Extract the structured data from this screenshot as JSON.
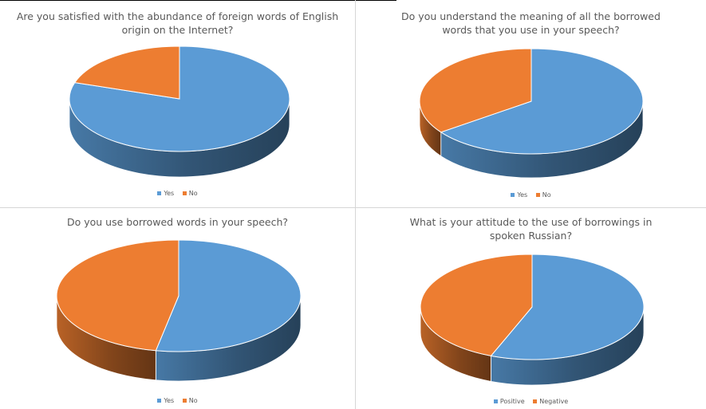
{
  "colors": {
    "series_a": "#5b9bd5",
    "series_b": "#ed7d31"
  },
  "chart_data": [
    {
      "type": "pie",
      "title": "Are you satisfied with the abundance of foreign words of English origin on the Internet?",
      "labels": [
        "Yes",
        "No"
      ],
      "values": [
        80,
        20
      ],
      "legend": "bottom"
    },
    {
      "type": "pie",
      "title": "Do you understand the meaning of all the borrowed words that you use in your speech?",
      "labels": [
        "Yes",
        "No"
      ],
      "values": [
        65,
        35
      ],
      "legend": "bottom"
    },
    {
      "type": "pie",
      "title": "Do you use borrowed words in your speech?",
      "labels": [
        "Yes",
        "No"
      ],
      "values": [
        53,
        47
      ],
      "legend": "bottom"
    },
    {
      "type": "pie",
      "title": "What is your attitude to the use of borrowings in spoken Russian?",
      "labels": [
        "Positive",
        "Negative"
      ],
      "values": [
        56,
        44
      ],
      "legend": "bottom"
    }
  ]
}
